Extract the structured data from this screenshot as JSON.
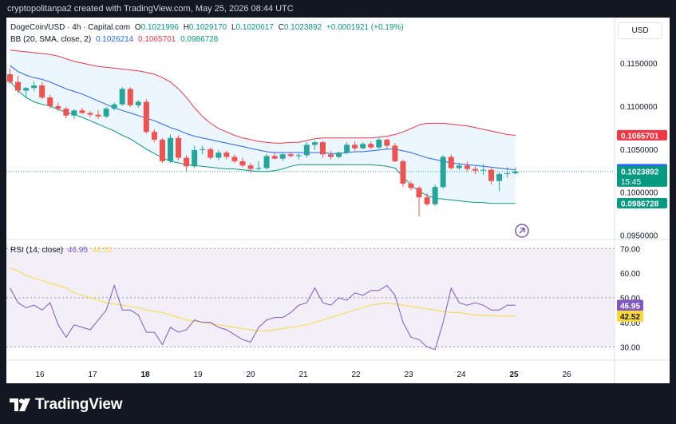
{
  "header": {
    "credit": "cryptopolitanpa2 created with TradingView.com, May 25, 2026 08:44 UTC"
  },
  "legend": {
    "symbol": "DogeCoin/USD · 4h · Capital.com",
    "ohlc": {
      "o_label": "O",
      "o": "0.1021996",
      "h_label": "H",
      "h": "0.1029170",
      "l_label": "L",
      "l": "0.1020617",
      "c_label": "C",
      "c": "0.1023892",
      "change": "+0.0001921 (+0.19%)"
    },
    "bb": {
      "label": "BB (20, SMA, close, 2)",
      "basis": "0.1026214",
      "upper": "0.1065701",
      "lower": "0.0986728"
    },
    "rsi": {
      "label": "RSI (14, close)",
      "rsi": "46.95",
      "ma": "42.52"
    }
  },
  "currency_button": "USD",
  "footer": {
    "brand": "TradingView"
  },
  "colors": {
    "up": "#26a69a",
    "down": "#ef5350",
    "bb_basis": "#2962ff",
    "bb_upper": "#f23645",
    "bb_lower": "#089981",
    "bb_fill": "#e3f2fd",
    "rsi_line": "#7e57c2",
    "rsi_ma": "#fdd835",
    "rsi_band": "#ede7f6",
    "page_bg": "#131722"
  },
  "chart_data": [
    {
      "type": "candlestick",
      "title": "DogeCoin/USD · 4h · Capital.com",
      "ylim": [
        0.0945,
        0.1175
      ],
      "y_ticks": [
        "0.1150000",
        "0.1100000",
        "0.1050000",
        "0.1000000",
        "0.0950000"
      ],
      "x_ticks": [
        "16",
        "17",
        "18",
        "19",
        "20",
        "21",
        "22",
        "23",
        "24",
        "25",
        "26"
      ],
      "candles": [
        {
          "o": 0.1137,
          "h": 0.1143,
          "l": 0.1126,
          "c": 0.1128
        },
        {
          "o": 0.1128,
          "h": 0.1135,
          "l": 0.1115,
          "c": 0.1118
        },
        {
          "o": 0.1118,
          "h": 0.1122,
          "l": 0.111,
          "c": 0.1121
        },
        {
          "o": 0.1121,
          "h": 0.1129,
          "l": 0.1117,
          "c": 0.1124
        },
        {
          "o": 0.1124,
          "h": 0.1128,
          "l": 0.1108,
          "c": 0.111
        },
        {
          "o": 0.111,
          "h": 0.1113,
          "l": 0.1097,
          "c": 0.11
        },
        {
          "o": 0.11,
          "h": 0.1104,
          "l": 0.1094,
          "c": 0.1097
        },
        {
          "o": 0.1097,
          "h": 0.1099,
          "l": 0.1086,
          "c": 0.1089
        },
        {
          "o": 0.1089,
          "h": 0.1096,
          "l": 0.1085,
          "c": 0.1095
        },
        {
          "o": 0.1095,
          "h": 0.1098,
          "l": 0.1091,
          "c": 0.1092
        },
        {
          "o": 0.1092,
          "h": 0.1094,
          "l": 0.1087,
          "c": 0.109
        },
        {
          "o": 0.109,
          "h": 0.1095,
          "l": 0.1085,
          "c": 0.1088
        },
        {
          "o": 0.1088,
          "h": 0.1099,
          "l": 0.1086,
          "c": 0.1097
        },
        {
          "o": 0.1097,
          "h": 0.1104,
          "l": 0.1095,
          "c": 0.1102
        },
        {
          "o": 0.1102,
          "h": 0.1122,
          "l": 0.11,
          "c": 0.112
        },
        {
          "o": 0.112,
          "h": 0.1122,
          "l": 0.1099,
          "c": 0.1101
        },
        {
          "o": 0.1101,
          "h": 0.1107,
          "l": 0.1098,
          "c": 0.1105
        },
        {
          "o": 0.1105,
          "h": 0.1108,
          "l": 0.1068,
          "c": 0.107
        },
        {
          "o": 0.107,
          "h": 0.1073,
          "l": 0.1058,
          "c": 0.1061
        },
        {
          "o": 0.1061,
          "h": 0.1063,
          "l": 0.1034,
          "c": 0.1036
        },
        {
          "o": 0.1036,
          "h": 0.1067,
          "l": 0.1034,
          "c": 0.1063
        },
        {
          "o": 0.1063,
          "h": 0.1066,
          "l": 0.1037,
          "c": 0.104
        },
        {
          "o": 0.104,
          "h": 0.1043,
          "l": 0.1024,
          "c": 0.103
        },
        {
          "o": 0.103,
          "h": 0.1054,
          "l": 0.1028,
          "c": 0.1049
        },
        {
          "o": 0.1049,
          "h": 0.1054,
          "l": 0.1044,
          "c": 0.105
        },
        {
          "o": 0.105,
          "h": 0.1052,
          "l": 0.1038,
          "c": 0.104
        },
        {
          "o": 0.104,
          "h": 0.1049,
          "l": 0.1037,
          "c": 0.1046
        },
        {
          "o": 0.1046,
          "h": 0.1048,
          "l": 0.1038,
          "c": 0.1041
        },
        {
          "o": 0.1041,
          "h": 0.1044,
          "l": 0.1034,
          "c": 0.1036
        },
        {
          "o": 0.1036,
          "h": 0.104,
          "l": 0.1029,
          "c": 0.1031
        },
        {
          "o": 0.1031,
          "h": 0.1034,
          "l": 0.1022,
          "c": 0.1027
        },
        {
          "o": 0.1027,
          "h": 0.1036,
          "l": 0.1024,
          "c": 0.1028
        },
        {
          "o": 0.1028,
          "h": 0.1044,
          "l": 0.1026,
          "c": 0.1042
        },
        {
          "o": 0.1042,
          "h": 0.1047,
          "l": 0.1038,
          "c": 0.1039
        },
        {
          "o": 0.1039,
          "h": 0.1046,
          "l": 0.1036,
          "c": 0.1044
        },
        {
          "o": 0.1044,
          "h": 0.1047,
          "l": 0.104,
          "c": 0.1042
        },
        {
          "o": 0.1042,
          "h": 0.1045,
          "l": 0.1038,
          "c": 0.1043
        },
        {
          "o": 0.1043,
          "h": 0.1058,
          "l": 0.104,
          "c": 0.1055
        },
        {
          "o": 0.1055,
          "h": 0.106,
          "l": 0.1049,
          "c": 0.1058
        },
        {
          "o": 0.1058,
          "h": 0.106,
          "l": 0.104,
          "c": 0.1044
        },
        {
          "o": 0.1044,
          "h": 0.1048,
          "l": 0.1038,
          "c": 0.1041
        },
        {
          "o": 0.1041,
          "h": 0.1047,
          "l": 0.1039,
          "c": 0.1046
        },
        {
          "o": 0.1046,
          "h": 0.1058,
          "l": 0.1044,
          "c": 0.1055
        },
        {
          "o": 0.1055,
          "h": 0.1059,
          "l": 0.1048,
          "c": 0.1051
        },
        {
          "o": 0.1051,
          "h": 0.1058,
          "l": 0.105,
          "c": 0.1056
        },
        {
          "o": 0.1056,
          "h": 0.1059,
          "l": 0.105,
          "c": 0.1052
        },
        {
          "o": 0.1052,
          "h": 0.1063,
          "l": 0.105,
          "c": 0.1061
        },
        {
          "o": 0.1061,
          "h": 0.1062,
          "l": 0.105,
          "c": 0.1054
        },
        {
          "o": 0.1054,
          "h": 0.1057,
          "l": 0.1035,
          "c": 0.1036
        },
        {
          "o": 0.1036,
          "h": 0.1038,
          "l": 0.1006,
          "c": 0.101
        },
        {
          "o": 0.101,
          "h": 0.1013,
          "l": 0.1002,
          "c": 0.1005
        },
        {
          "o": 0.1005,
          "h": 0.1007,
          "l": 0.0972,
          "c": 0.0994
        },
        {
          "o": 0.0994,
          "h": 0.0999,
          "l": 0.0984,
          "c": 0.0986
        },
        {
          "o": 0.0986,
          "h": 0.1009,
          "l": 0.0984,
          "c": 0.1006
        },
        {
          "o": 0.1006,
          "h": 0.1043,
          "l": 0.1004,
          "c": 0.1041
        },
        {
          "o": 0.1041,
          "h": 0.1044,
          "l": 0.1026,
          "c": 0.1028
        },
        {
          "o": 0.1028,
          "h": 0.1034,
          "l": 0.1026,
          "c": 0.1031
        },
        {
          "o": 0.1031,
          "h": 0.1036,
          "l": 0.1024,
          "c": 0.1027
        },
        {
          "o": 0.1027,
          "h": 0.103,
          "l": 0.1021,
          "c": 0.1025
        },
        {
          "o": 0.1025,
          "h": 0.1033,
          "l": 0.102,
          "c": 0.1026
        },
        {
          "o": 0.1026,
          "h": 0.1028,
          "l": 0.1009,
          "c": 0.1013
        },
        {
          "o": 0.1013,
          "h": 0.1023,
          "l": 0.1001,
          "c": 0.1021
        },
        {
          "o": 0.1021,
          "h": 0.1029,
          "l": 0.1017,
          "c": 0.1022
        },
        {
          "o": 0.1022,
          "h": 0.1029,
          "l": 0.1021,
          "c": 0.1024
        }
      ],
      "bb_basis": [
        0.1147,
        0.114,
        0.1136,
        0.1133,
        0.1131,
        0.1128,
        0.1124,
        0.112,
        0.1117,
        0.1114,
        0.111,
        0.1106,
        0.1102,
        0.1098,
        0.1095,
        0.1092,
        0.1089,
        0.1086,
        0.1083,
        0.1079,
        0.1075,
        0.1072,
        0.1068,
        0.1065,
        0.1063,
        0.1061,
        0.1059,
        0.1057,
        0.1055,
        0.1053,
        0.1051,
        0.1049,
        0.1047,
        0.1046,
        0.1046,
        0.1046,
        0.1046,
        0.1046,
        0.1046,
        0.1046,
        0.1045,
        0.1045,
        0.1046,
        0.1047,
        0.1047,
        0.1048,
        0.1049,
        0.105,
        0.105,
        0.1048,
        0.1046,
        0.1043,
        0.104,
        0.1038,
        0.1036,
        0.1034,
        0.1033,
        0.1032,
        0.1031,
        0.103,
        0.1029,
        0.1028,
        0.1027,
        0.1026
      ],
      "bb_upper": [
        0.1165,
        0.1164,
        0.1163,
        0.1162,
        0.1161,
        0.116,
        0.1158,
        0.1155,
        0.1152,
        0.115,
        0.1148,
        0.1146,
        0.1145,
        0.1144,
        0.1143,
        0.1142,
        0.1141,
        0.1139,
        0.1137,
        0.1133,
        0.1128,
        0.112,
        0.111,
        0.1098,
        0.1088,
        0.108,
        0.1074,
        0.107,
        0.1066,
        0.1063,
        0.1061,
        0.1059,
        0.1058,
        0.1057,
        0.1057,
        0.1058,
        0.1058,
        0.106,
        0.1062,
        0.1063,
        0.1063,
        0.1063,
        0.1063,
        0.1063,
        0.1063,
        0.1063,
        0.1064,
        0.1065,
        0.1067,
        0.107,
        0.1074,
        0.1078,
        0.108,
        0.108,
        0.108,
        0.1079,
        0.1078,
        0.1077,
        0.1075,
        0.1073,
        0.1071,
        0.1069,
        0.1067,
        0.1066
      ],
      "bb_lower": [
        0.1129,
        0.1118,
        0.111,
        0.1105,
        0.1102,
        0.11,
        0.1096,
        0.1093,
        0.109,
        0.1087,
        0.1083,
        0.1079,
        0.1075,
        0.1071,
        0.1066,
        0.1062,
        0.1056,
        0.105,
        0.1045,
        0.104,
        0.1036,
        0.1034,
        0.1032,
        0.1031,
        0.103,
        0.1029,
        0.1028,
        0.1027,
        0.1027,
        0.1026,
        0.1025,
        0.1024,
        0.1024,
        0.1025,
        0.1027,
        0.103,
        0.1032,
        0.1032,
        0.1032,
        0.1032,
        0.1032,
        0.1032,
        0.1032,
        0.1032,
        0.1032,
        0.1032,
        0.1031,
        0.103,
        0.1028,
        0.1018,
        0.1008,
        0.1001,
        0.0996,
        0.0993,
        0.0992,
        0.0991,
        0.099,
        0.0989,
        0.0988,
        0.0988,
        0.0987,
        0.0987,
        0.0987,
        0.0987
      ],
      "last_price_labels": [
        {
          "value": 0.1065701,
          "text": "0.1065701",
          "color": "#f23645"
        },
        {
          "value": 0.1026214,
          "text": "0.1026214",
          "color": "#2962ff"
        },
        {
          "value": 0.1023892,
          "text": "0.1023892",
          "color": "#089981",
          "sub": "15:45"
        },
        {
          "value": 0.0986728,
          "text": "0.0986728",
          "color": "#089981"
        }
      ]
    },
    {
      "type": "line",
      "title": "RSI (14, close)",
      "ylim": [
        25,
        73
      ],
      "y_ticks": [
        "70.00",
        "60.00",
        "50.00",
        "40.00",
        "30.00"
      ],
      "bands": [
        30,
        50,
        70
      ],
      "series": [
        {
          "name": "RSI",
          "values": [
            54,
            48,
            46,
            47,
            45,
            48,
            39,
            34,
            39,
            38,
            37,
            41,
            45,
            55,
            45,
            45,
            43,
            36,
            36,
            31,
            38,
            36,
            37,
            41,
            40,
            40,
            38,
            37,
            35,
            33,
            32,
            38,
            41,
            42,
            42,
            44,
            47,
            48,
            54,
            48,
            47,
            50,
            49,
            52,
            51,
            53,
            53,
            55,
            51,
            40,
            34,
            33,
            30,
            29,
            40,
            54,
            48,
            47,
            48,
            47,
            45,
            45,
            47,
            47
          ]
        },
        {
          "name": "RSI MA",
          "values": [
            62,
            61,
            59,
            58,
            57,
            56,
            55,
            54,
            52,
            51,
            50,
            49,
            48,
            47.5,
            47,
            46.5,
            46,
            45,
            44.5,
            44,
            43,
            42,
            41,
            40.5,
            40,
            39.5,
            39,
            38.5,
            38,
            37.5,
            37,
            36.5,
            36.5,
            37,
            37.5,
            38,
            38.5,
            39,
            40,
            41,
            42,
            43,
            44,
            45,
            46,
            47,
            47.5,
            48,
            47.5,
            47,
            46.5,
            46,
            45.5,
            45,
            44.5,
            44,
            44,
            43.5,
            43,
            43,
            42.8,
            42.6,
            42.5,
            42.52
          ]
        }
      ]
    }
  ]
}
